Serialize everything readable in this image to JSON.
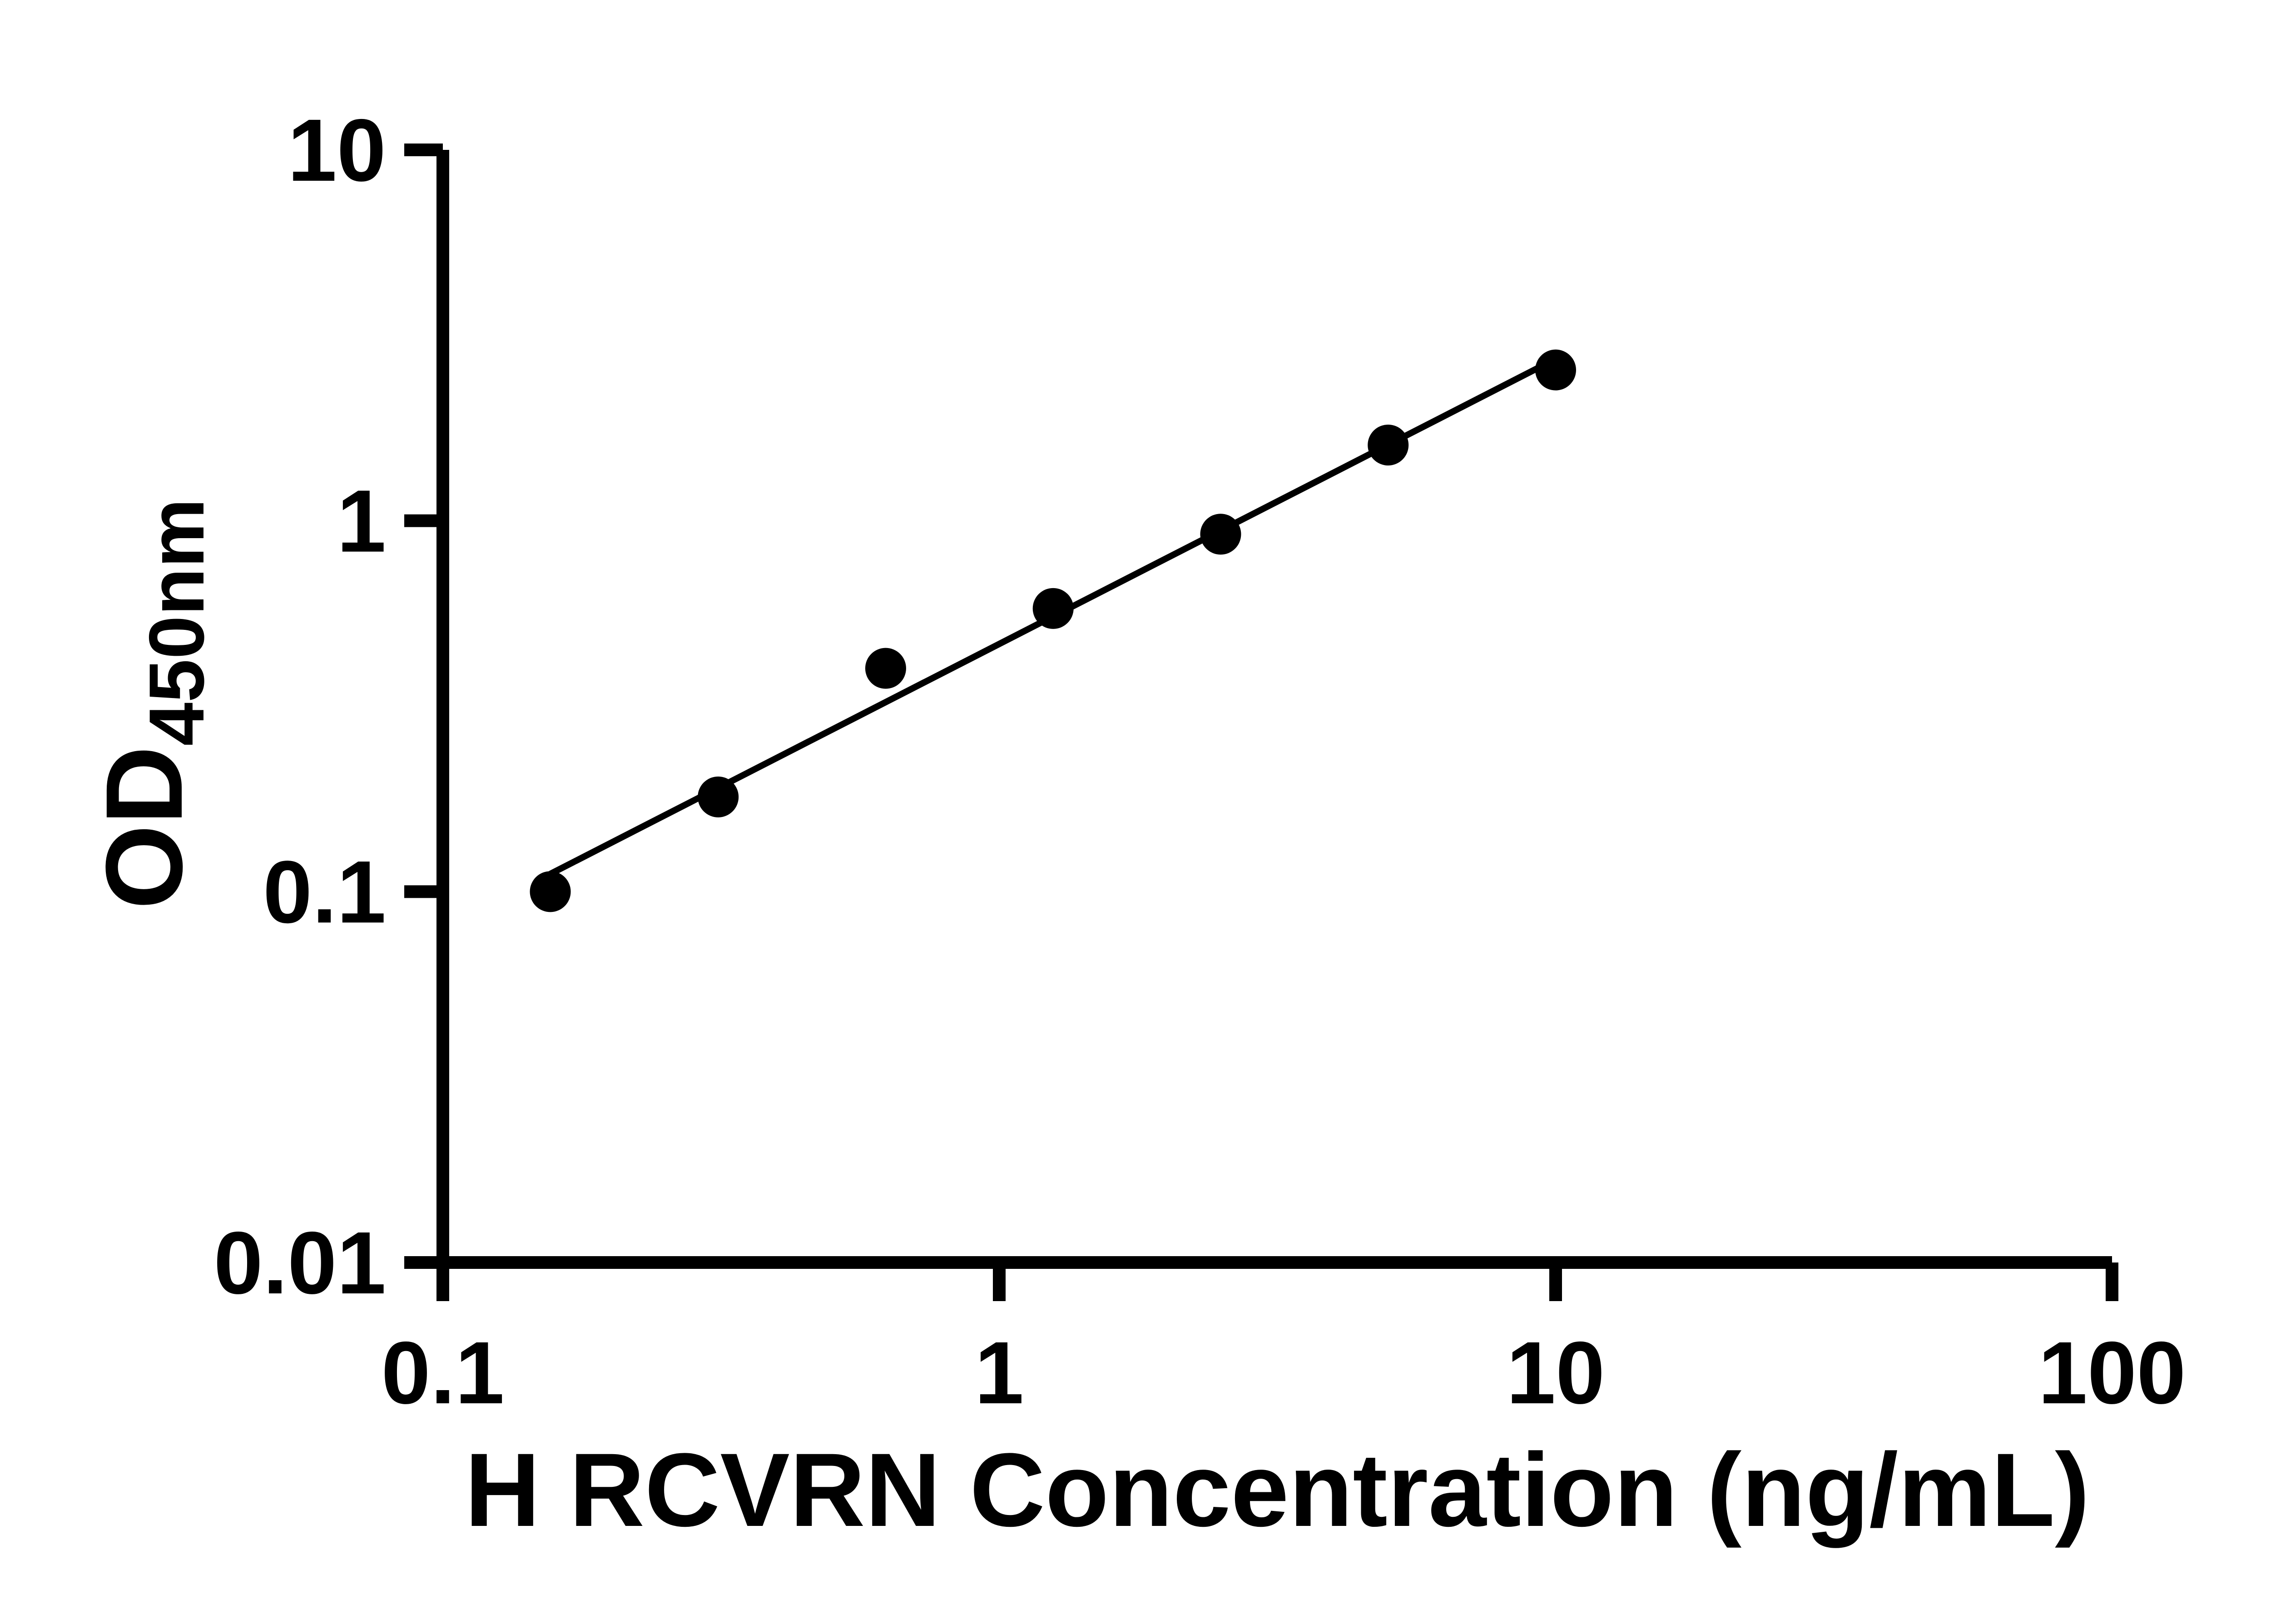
{
  "figure": {
    "background_color": "#ffffff",
    "axis_color": "#000000",
    "marker_color": "#000000",
    "trend_line_color": "#000000"
  },
  "chart_data": {
    "type": "scatter",
    "x": [
      0.156,
      0.3125,
      0.625,
      1.25,
      2.5,
      5,
      10
    ],
    "y": [
      0.1,
      0.18,
      0.4,
      0.58,
      0.92,
      1.6,
      2.55
    ],
    "title": "",
    "xlabel": "H RCVRN Concentration (ng/mL)",
    "ylabel": "OD",
    "ylabel_subscript": "450nm",
    "xlim": [
      0.1,
      100
    ],
    "ylim": [
      0.01,
      10
    ],
    "x_scale": "log",
    "y_scale": "log",
    "x_ticks": [
      0.1,
      1,
      10,
      100
    ],
    "x_tick_labels": [
      "0.1",
      "1",
      "10",
      "100"
    ],
    "y_ticks": [
      0.01,
      0.1,
      1,
      10
    ],
    "y_tick_labels": [
      "0.01",
      "0.1",
      "1",
      "10"
    ],
    "grid": false,
    "legend": false,
    "trend_line": true,
    "marker": "circle"
  }
}
